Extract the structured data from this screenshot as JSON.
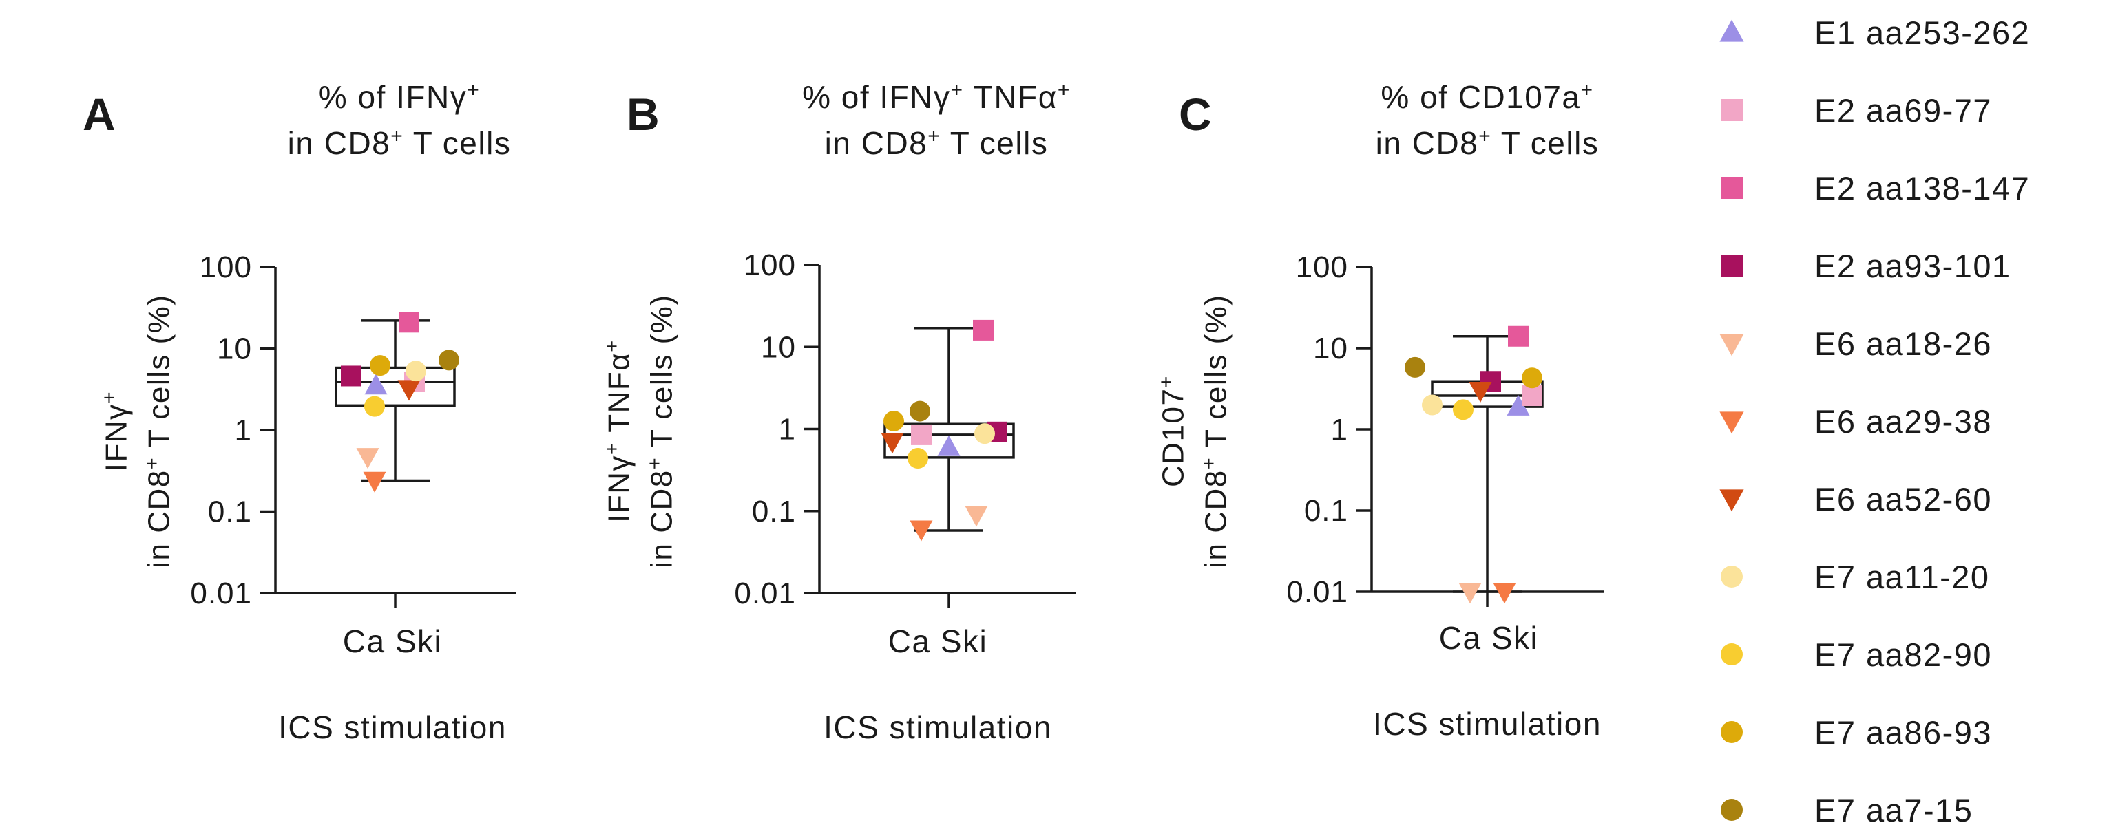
{
  "chart_data": [
    {
      "type": "scatter",
      "panel": "A",
      "title_line1": "% of IFNγ",
      "title_line1_sup": "+",
      "title_line2": "in CD8",
      "title_line2_sup": "+",
      "title_line2_tail": " T cells",
      "ylabel_line1": "IFNγ",
      "ylabel_line1_sup": "+",
      "ylabel_line2": "in CD8",
      "ylabel_line2_sup": "+",
      "ylabel_line2_tail": " T cells (%)",
      "category": "Ca Ski",
      "xlabel": "ICS stimulation",
      "yscale": "log",
      "ylim": [
        0.01,
        100
      ],
      "yticks": [
        "100",
        "10",
        "1",
        "0.1",
        "0.01"
      ],
      "box": {
        "min": 0.24,
        "q1": 2.0,
        "median": 3.9,
        "q3": 5.8,
        "max": 22
      },
      "points": [
        {
          "series": "E1 aa253-262",
          "value": 3.5
        },
        {
          "series": "E2 aa69-77",
          "value": 3.9
        },
        {
          "series": "E2 aa138-147",
          "value": 21
        },
        {
          "series": "E2 aa93-101",
          "value": 4.6
        },
        {
          "series": "E6 aa18-26",
          "value": 0.47
        },
        {
          "series": "E6 aa29-38",
          "value": 0.24
        },
        {
          "series": "E6 aa52-60",
          "value": 3.2
        },
        {
          "series": "E7 aa11-20",
          "value": 5.3
        },
        {
          "series": "E7 aa82-90",
          "value": 1.95
        },
        {
          "series": "E7 aa86-93",
          "value": 6.2
        },
        {
          "series": "E7 aa7-15",
          "value": 7.2
        }
      ]
    },
    {
      "type": "scatter",
      "panel": "B",
      "title_line1": "% of IFNγ",
      "title_line1_sup": "+",
      "title_line1_tail": " TNFα",
      "title_line1_sup2": "+",
      "title_line2": "in CD8",
      "title_line2_sup": "+",
      "title_line2_tail": " T cells",
      "ylabel_line1": "IFNγ",
      "ylabel_line1_sup": "+",
      "ylabel_line1_tail": " TNFα",
      "ylabel_line1_sup2": "+",
      "ylabel_line2": "in CD8",
      "ylabel_line2_sup": "+",
      "ylabel_line2_tail": " T cells (%)",
      "category": "Ca Ski",
      "xlabel": "ICS stimulation",
      "yscale": "log",
      "ylim": [
        0.01,
        100
      ],
      "yticks": [
        "100",
        "10",
        "1",
        "0.1",
        "0.01"
      ],
      "box": {
        "min": 0.058,
        "q1": 0.45,
        "median": 0.85,
        "q3": 1.15,
        "max": 17
      },
      "points": [
        {
          "series": "E1 aa253-262",
          "value": 0.6
        },
        {
          "series": "E2 aa69-77",
          "value": 0.85
        },
        {
          "series": "E2 aa138-147",
          "value": 16
        },
        {
          "series": "E2 aa93-101",
          "value": 0.92
        },
        {
          "series": "E6 aa18-26",
          "value": 0.09
        },
        {
          "series": "E6 aa29-38",
          "value": 0.06
        },
        {
          "series": "E6 aa52-60",
          "value": 0.7
        },
        {
          "series": "E7 aa11-20",
          "value": 0.88
        },
        {
          "series": "E7 aa82-90",
          "value": 0.44
        },
        {
          "series": "E7 aa86-93",
          "value": 1.25
        },
        {
          "series": "E7 aa7-15",
          "value": 1.65
        }
      ]
    },
    {
      "type": "scatter",
      "panel": "C",
      "title_line1": "% of CD107a",
      "title_line1_sup": "+",
      "title_line2": "in CD8",
      "title_line2_sup": "+",
      "title_line2_tail": " T cells",
      "ylabel_line1": "CD107",
      "ylabel_line1_sup": "+",
      "ylabel_line2": "in CD8",
      "ylabel_line2_sup": "+",
      "ylabel_line2_tail": " T cells (%)",
      "category": "Ca Ski",
      "xlabel": "ICS stimulation",
      "yscale": "log",
      "ylim": [
        0.01,
        100
      ],
      "yticks": [
        "100",
        "10",
        "1",
        "0.1",
        "0.01"
      ],
      "box": {
        "min": 0.01,
        "q1": 1.9,
        "median": 2.6,
        "q3": 3.9,
        "max": 14
      },
      "points": [
        {
          "series": "E1 aa253-262",
          "value": 1.9
        },
        {
          "series": "E2 aa69-77",
          "value": 2.6
        },
        {
          "series": "E2 aa138-147",
          "value": 14
        },
        {
          "series": "E2 aa93-101",
          "value": 3.9
        },
        {
          "series": "E6 aa18-26",
          "value": 0.01
        },
        {
          "series": "E6 aa29-38",
          "value": 0.01
        },
        {
          "series": "E6 aa52-60",
          "value": 3.0
        },
        {
          "series": "E7 aa11-20",
          "value": 2.0
        },
        {
          "series": "E7 aa82-90",
          "value": 1.75
        },
        {
          "series": "E7 aa86-93",
          "value": 4.3
        },
        {
          "series": "E7 aa7-15",
          "value": 5.8
        }
      ]
    }
  ],
  "legend": [
    {
      "label": "E1 aa253-262",
      "shape": "triangle-up",
      "color": "#9c8fe6"
    },
    {
      "label": "E2 aa69-77",
      "shape": "square",
      "color": "#f2a6c6"
    },
    {
      "label": "E2 aa138-147",
      "shape": "square",
      "color": "#e5589a"
    },
    {
      "label": "E2 aa93-101",
      "shape": "square",
      "color": "#a8115e"
    },
    {
      "label": "E6 aa18-26",
      "shape": "triangle-down",
      "color": "#f9b895"
    },
    {
      "label": "E6 aa29-38",
      "shape": "triangle-down",
      "color": "#f57a44"
    },
    {
      "label": "E6 aa52-60",
      "shape": "triangle-down",
      "color": "#d14a12"
    },
    {
      "label": "E7 aa11-20",
      "shape": "circle",
      "color": "#fbe39a"
    },
    {
      "label": "E7 aa82-90",
      "shape": "circle",
      "color": "#f8cd30"
    },
    {
      "label": "E7 aa86-93",
      "shape": "circle",
      "color": "#ddaa0a"
    },
    {
      "label": "E7 aa7-15",
      "shape": "circle",
      "color": "#a9820f"
    }
  ],
  "colors": {
    "axis": "#1a1a1a",
    "text": "#1a1a1a"
  }
}
